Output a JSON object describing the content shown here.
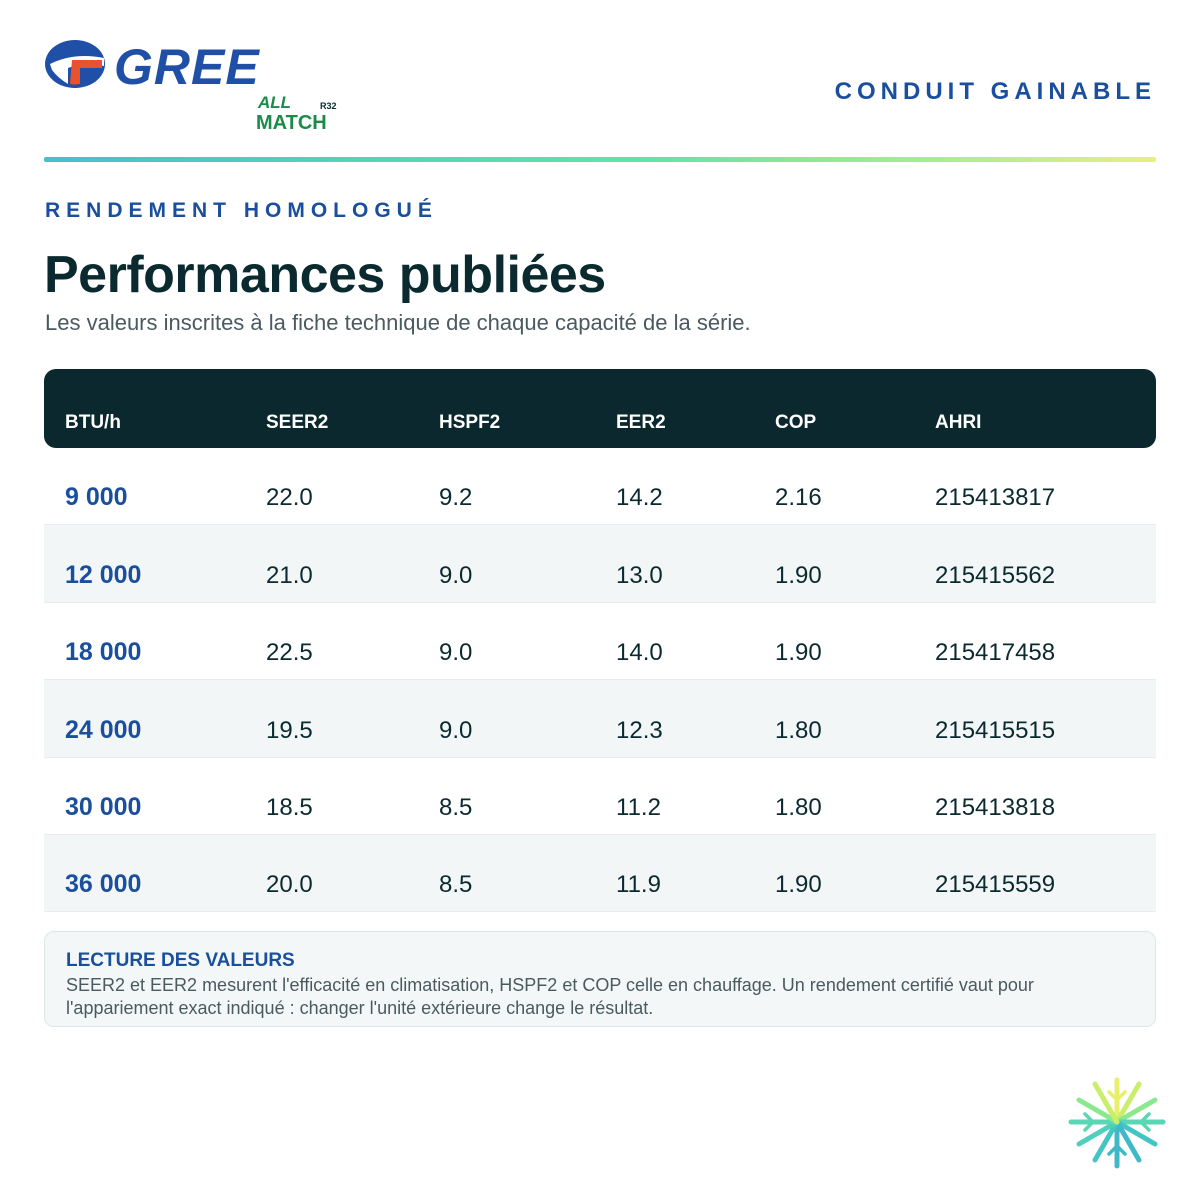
{
  "brand": {
    "name": "GREE",
    "sub_logo_line1": "ALL",
    "sub_logo_line2": "MATCH",
    "sub_logo_tag": "R32"
  },
  "header": {
    "category": "CONDUIT GAINABLE"
  },
  "section": {
    "kicker": "RENDEMENT HOMOLOGUÉ",
    "title": "Performances publiées",
    "subtitle": "Les valeurs inscrites à la fiche technique de chaque capacité de la série."
  },
  "table": {
    "headers": [
      "BTU/h",
      "SEER2",
      "HSPF2",
      "EER2",
      "COP",
      "AHRI"
    ],
    "rows": [
      [
        "9 000",
        "22.0",
        "9.2",
        "14.2",
        "2.16",
        "215413817"
      ],
      [
        "12 000",
        "21.0",
        "9.0",
        "13.0",
        "1.90",
        "215415562"
      ],
      [
        "18 000",
        "22.5",
        "9.0",
        "14.0",
        "1.90",
        "215417458"
      ],
      [
        "24 000",
        "19.5",
        "9.0",
        "12.3",
        "1.80",
        "215415515"
      ],
      [
        "30 000",
        "18.5",
        "8.5",
        "11.2",
        "1.80",
        "215413818"
      ],
      [
        "36 000",
        "20.0",
        "8.5",
        "11.9",
        "1.90",
        "215415559"
      ]
    ]
  },
  "note": {
    "title": "LECTURE DES VALEURS",
    "body": "SEER2 et EER2 mesurent l'efficacité en climatisation, HSPF2 et COP celle en chauffage. Un rendement certifié vaut pour l'appariement exact indiqué : changer l'unité extérieure change le résultat."
  },
  "colors": {
    "brand_blue": "#1f4fa7",
    "accent_orange": "#e8532b",
    "dark_header": "#0a282d",
    "heading_blue": "#1a4f9e"
  },
  "icons": {
    "logo_mark": "gree-swoosh-icon",
    "corner_mark": "snowflake-burst-icon"
  }
}
